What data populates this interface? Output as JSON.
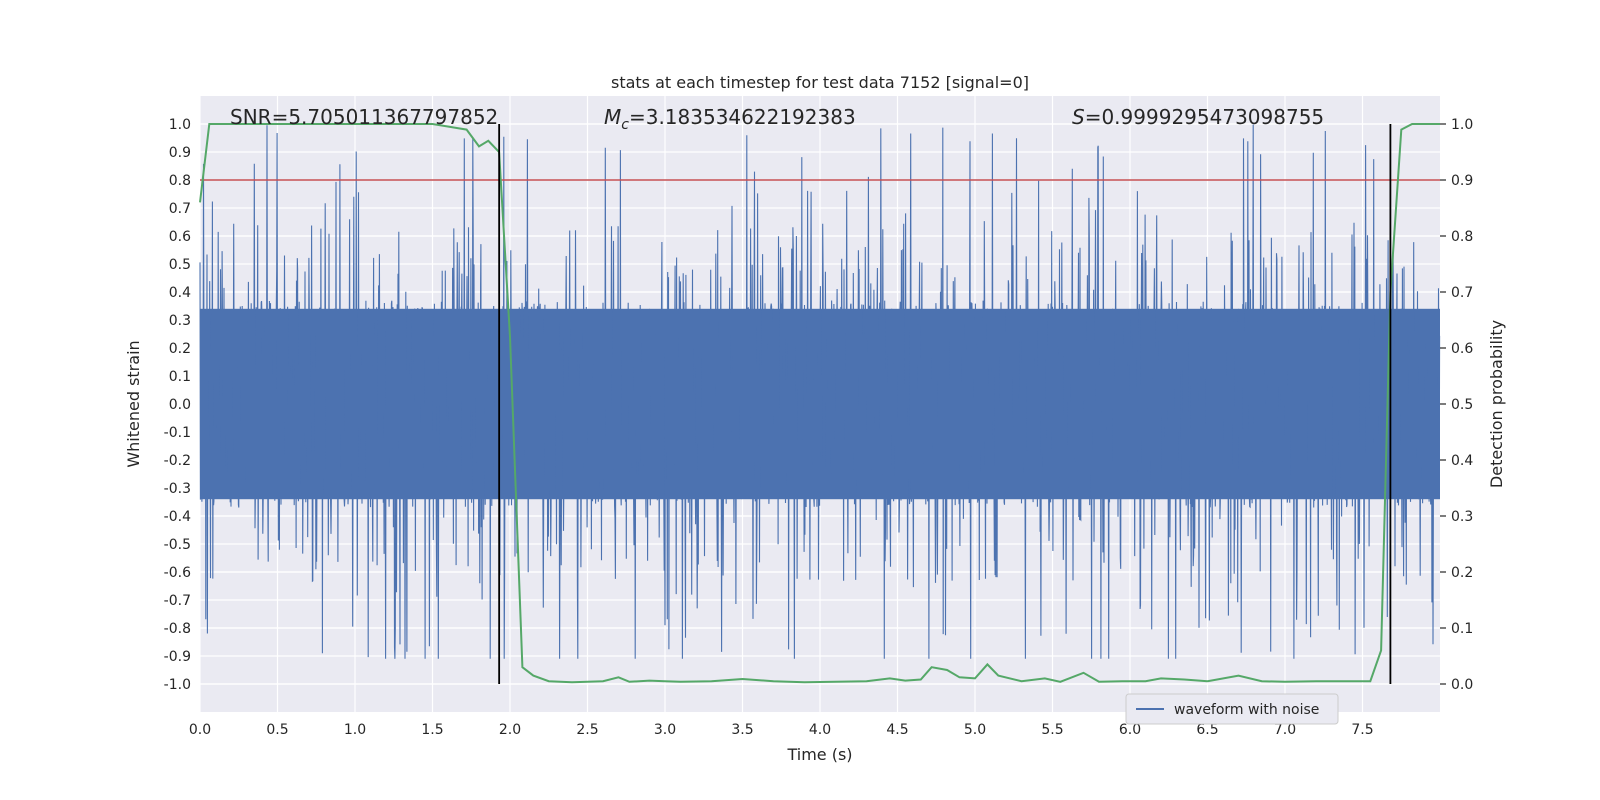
{
  "chart_data": {
    "type": "line",
    "title": "stats at each timestep for test data 7152 [signal=0]",
    "xlabel": "Time (s)",
    "ylabel": "Whitened strain",
    "y2label": "Detection probability",
    "xlim": [
      0,
      8
    ],
    "ylim": [
      -1.1,
      1.1
    ],
    "y2lim": [
      -0.05,
      1.05
    ],
    "xticks": [
      "0.0",
      "0.5",
      "1.0",
      "1.5",
      "2.0",
      "2.5",
      "3.0",
      "3.5",
      "4.0",
      "4.5",
      "5.0",
      "5.5",
      "6.0",
      "6.5",
      "7.0",
      "7.5"
    ],
    "yticks": [
      "1.0",
      "0.9",
      "0.8",
      "0.7",
      "0.6",
      "0.5",
      "0.4",
      "0.3",
      "0.2",
      "0.1",
      "0.0",
      "-0.1",
      "-0.2",
      "-0.3",
      "-0.4",
      "-0.5",
      "-0.6",
      "-0.7",
      "-0.8",
      "-0.9",
      "-1.0"
    ],
    "y2ticks": [
      "1.0",
      "0.9",
      "0.8",
      "0.7",
      "0.6",
      "0.5",
      "0.4",
      "0.3",
      "0.2",
      "0.1",
      "0.0"
    ],
    "annotations": {
      "snr_label": "SNR",
      "snr_value": "=5.705011367797852",
      "mc_label": "M",
      "mc_sub": "c",
      "mc_value": "=3.183534622192383",
      "s_label": "S",
      "s_value": "=0.9999295473098755"
    },
    "threshold": {
      "value": 0.9,
      "axis": "right",
      "color": "#c44e52"
    },
    "vlines": [
      1.93,
      7.68
    ],
    "legend": {
      "label": "waveform with noise",
      "location": "lower right"
    },
    "waveform": {
      "name": "waveform with noise",
      "color": "#4c72b0",
      "envelope_upper": 0.4,
      "envelope_lower": -0.4,
      "spike_peak_max": 1.0,
      "spike_peak_min": -0.91,
      "duration": 8.0
    },
    "probability": {
      "name": "detection probability",
      "color": "#55a868",
      "x": [
        0.0,
        0.06,
        0.5,
        1.0,
        1.5,
        1.72,
        1.8,
        1.86,
        1.93,
        2.0,
        2.08,
        2.15,
        2.25,
        2.4,
        2.6,
        2.7,
        2.77,
        2.9,
        3.0,
        3.1,
        3.3,
        3.5,
        3.7,
        3.9,
        4.1,
        4.3,
        4.45,
        4.55,
        4.65,
        4.72,
        4.82,
        4.9,
        5.0,
        5.08,
        5.15,
        5.3,
        5.45,
        5.55,
        5.7,
        5.8,
        5.95,
        6.1,
        6.2,
        6.35,
        6.5,
        6.7,
        6.85,
        7.0,
        7.2,
        7.4,
        7.55,
        7.62,
        7.68,
        7.75,
        7.82,
        7.9,
        8.0
      ],
      "y": [
        0.86,
        1.0,
        1.0,
        1.0,
        1.0,
        0.99,
        0.96,
        0.97,
        0.95,
        0.62,
        0.03,
        0.015,
        0.005,
        0.003,
        0.005,
        0.012,
        0.004,
        0.006,
        0.005,
        0.004,
        0.005,
        0.009,
        0.005,
        0.003,
        0.004,
        0.005,
        0.01,
        0.006,
        0.008,
        0.03,
        0.025,
        0.012,
        0.01,
        0.035,
        0.015,
        0.005,
        0.01,
        0.004,
        0.02,
        0.004,
        0.005,
        0.005,
        0.01,
        0.008,
        0.005,
        0.015,
        0.005,
        0.004,
        0.005,
        0.005,
        0.005,
        0.06,
        0.7,
        0.99,
        1.0,
        1.0,
        1.0
      ]
    }
  }
}
